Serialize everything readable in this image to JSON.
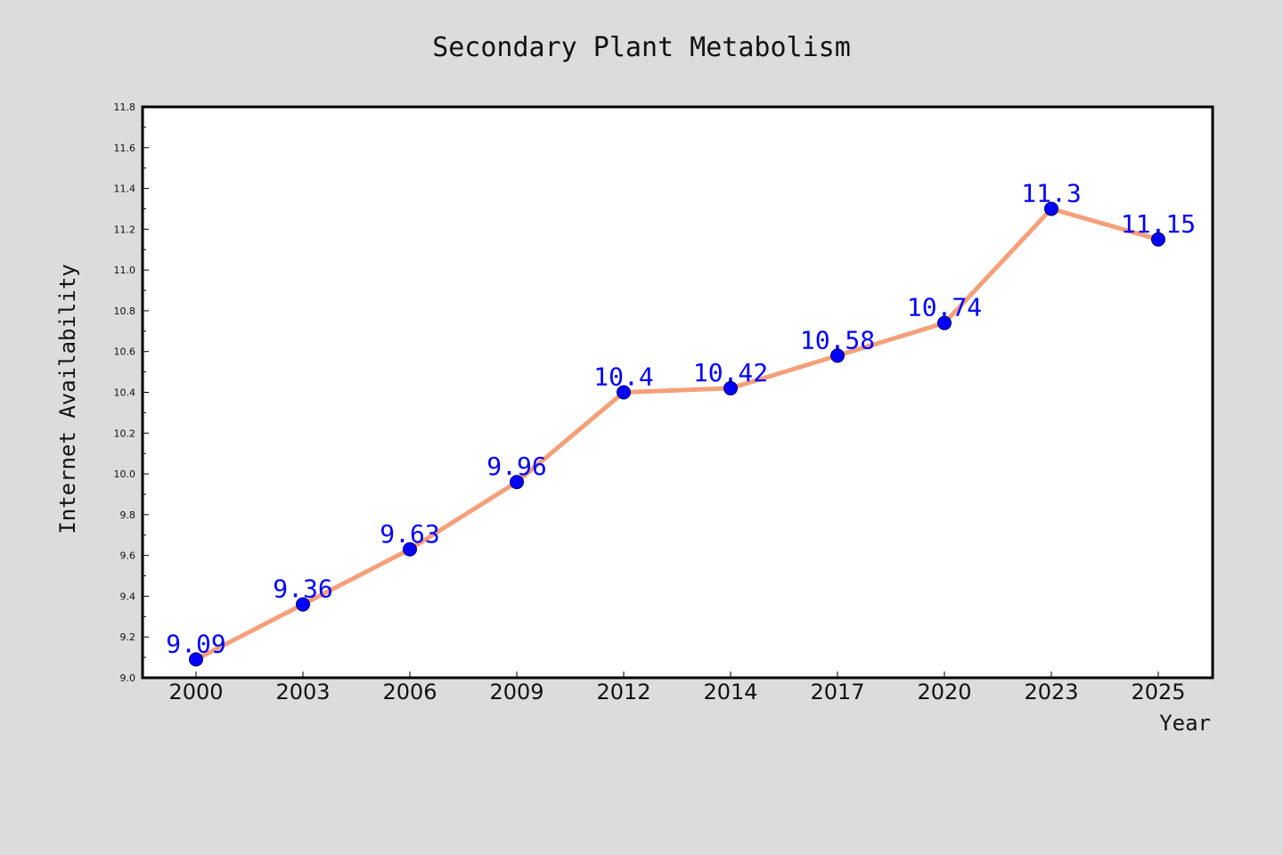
{
  "colors": {
    "figure_background": "#dcdcdc",
    "plot_background": "#ffffff",
    "axes_frame": "#000000",
    "line": "#f4a07a",
    "marker": "#0000ff",
    "data_label": "#0000ff",
    "text": "#111111"
  },
  "chart_data": {
    "type": "line",
    "title": "Secondary Plant Metabolism",
    "xlabel": "Year",
    "ylabel": "Internet Availability",
    "categories": [
      "2000",
      "2003",
      "2006",
      "2009",
      "2012",
      "2014",
      "2017",
      "2020",
      "2023",
      "2025"
    ],
    "series": [
      {
        "values": [
          9.09,
          9.36,
          9.63,
          9.96,
          10.4,
          10.42,
          10.58,
          10.74,
          11.3,
          11.15
        ],
        "labels": [
          "9.09",
          "9.36",
          "9.63",
          "9.96",
          "10.4",
          "10.42",
          "10.58",
          "10.74",
          "11.3",
          "11.15"
        ]
      }
    ],
    "ylim": [
      9.0,
      11.8
    ],
    "yticks": [
      "9.0",
      "9.2",
      "9.4",
      "9.6",
      "9.8",
      "10.0",
      "10.2",
      "10.4",
      "10.6",
      "10.8",
      "11.0",
      "11.2",
      "11.4",
      "11.6",
      "11.8"
    ],
    "grid": false,
    "legend": "none"
  }
}
